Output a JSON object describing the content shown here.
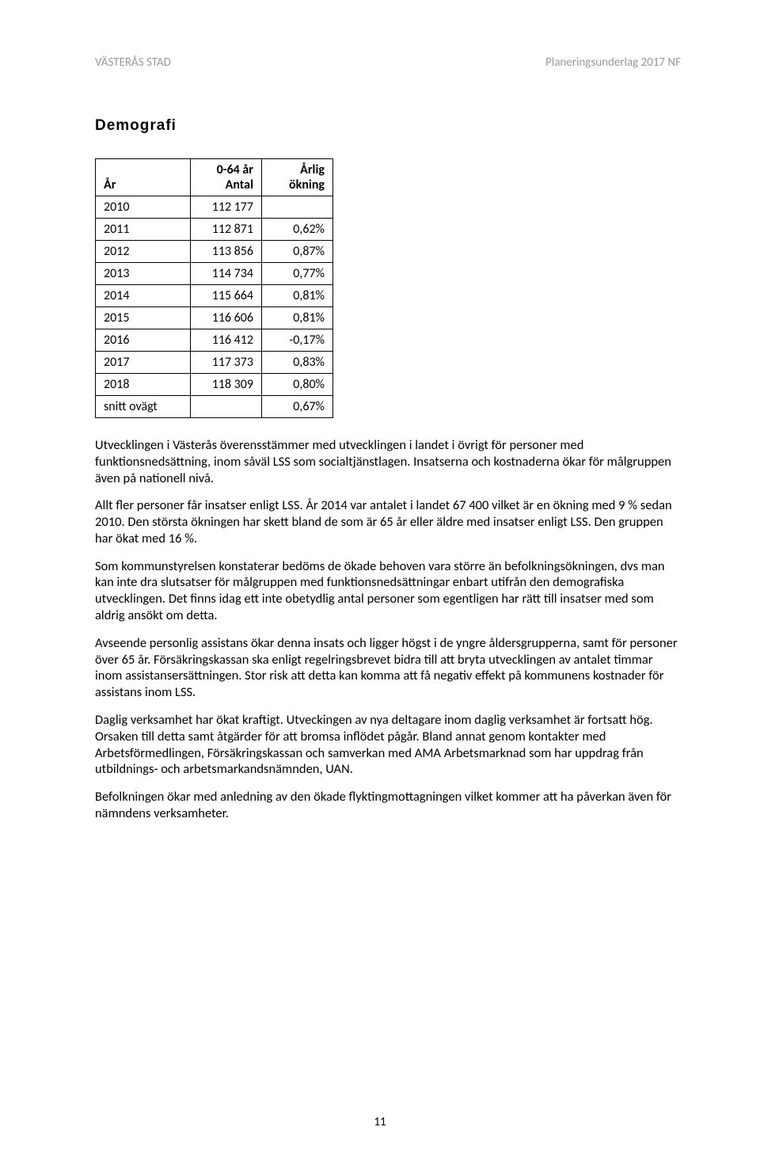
{
  "header": {
    "left": "VÄSTERÅS STAD",
    "right": "Planeringsunderlag 2017 NF"
  },
  "section_title": "Demografi",
  "table": {
    "head": {
      "c0_line1": "",
      "c0_line2": "År",
      "c1_line1": "0-64 år",
      "c1_line2": "Antal",
      "c2_line1": "Årlig",
      "c2_line2": "ökning"
    },
    "rows": [
      {
        "year": "2010",
        "antal": "112 177",
        "okning": ""
      },
      {
        "year": "2011",
        "antal": "112 871",
        "okning": "0,62%"
      },
      {
        "year": "2012",
        "antal": "113 856",
        "okning": "0,87%"
      },
      {
        "year": "2013",
        "antal": "114 734",
        "okning": "0,77%"
      },
      {
        "year": "2014",
        "antal": "115 664",
        "okning": "0,81%"
      },
      {
        "year": "2015",
        "antal": "116 606",
        "okning": "0,81%"
      },
      {
        "year": "2016",
        "antal": "116 412",
        "okning": "-0,17%"
      },
      {
        "year": "2017",
        "antal": "117 373",
        "okning": "0,83%"
      },
      {
        "year": "2018",
        "antal": "118 309",
        "okning": "0,80%"
      },
      {
        "year": "snitt ovägt",
        "antal": "",
        "okning": "0,67%"
      }
    ]
  },
  "paragraphs": [
    "Utvecklingen i Västerås överensstämmer med utvecklingen i landet i övrigt för personer med funktionsnedsättning, inom såväl LSS som socialtjänstlagen. Insatserna och kostnaderna ökar för målgruppen även på nationell nivå.",
    "Allt fler personer får insatser enligt LSS. År 2014 var antalet i landet  67 400 vilket är en ökning med 9 % sedan 2010. Den största ökningen har skett bland de som är 65 år eller äldre med insatser enligt LSS. Den gruppen har ökat med 16 %.",
    "Som kommunstyrelsen konstaterar bedöms de ökade behoven vara större än befolkningsökningen, dvs man kan inte dra slutsatser för målgruppen med funktionsnedsättningar enbart utifrån den demografiska utvecklingen. Det finns idag ett inte obetydlig antal personer som egentligen har rätt till insatser med som aldrig ansökt om detta.",
    "Avseende personlig assistans ökar denna insats och ligger högst i de yngre åldersgrupperna, samt för personer över 65 år. Försäkringskassan ska enligt regelringsbrevet bidra till att bryta utvecklingen av antalet timmar inom assistansersättningen. Stor risk att detta kan komma att få negativ effekt på kommunens kostnader för assistans inom LSS.",
    "Daglig verksamhet har ökat kraftigt. Utveckingen av nya deltagare inom daglig verksamhet är fortsatt hög. Orsaken till detta samt åtgärder för att bromsa inflödet pågår. Bland annat genom kontakter med Arbetsförmedlingen, Försäkringskassan och samverkan med AMA Arbetsmarknad som har uppdrag från utbildnings- och arbetsmarkandsnämnden, UAN.",
    "Befolkningen ökar med anledning av den ökade flyktingmottagningen vilket kommer att ha påverkan även för nämndens verksamheter."
  ],
  "page_number": "11"
}
